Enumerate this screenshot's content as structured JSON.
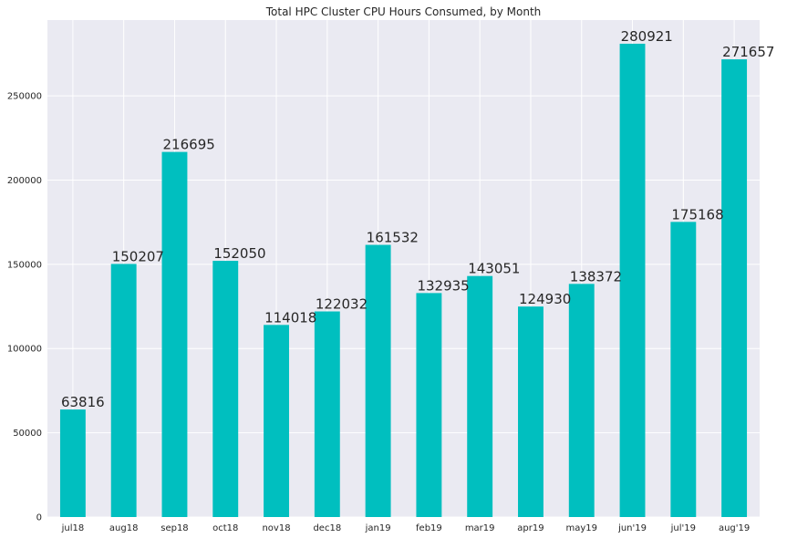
{
  "chart_data": {
    "type": "bar",
    "title": "Total HPC Cluster CPU Hours Consumed, by Month",
    "xlabel": "",
    "ylabel": "",
    "categories": [
      "jul18",
      "aug18",
      "sep18",
      "oct18",
      "nov18",
      "dec18",
      "jan19",
      "feb19",
      "mar19",
      "apr19",
      "may19",
      "jun'19",
      "jul'19",
      "aug'19"
    ],
    "values": [
      63816,
      150207,
      216695,
      152050,
      114018,
      122032,
      161532,
      132935,
      143051,
      124930,
      138372,
      280921,
      175168,
      271657
    ],
    "ylim": [
      0,
      294967
    ],
    "yticks": [
      0,
      50000,
      100000,
      150000,
      200000,
      250000
    ],
    "grid": true,
    "legend": "none",
    "colors": {
      "bar": "#00bfbf",
      "plot_background": "#eaeaf2",
      "grid": "#ffffff",
      "text": "#262626"
    }
  }
}
